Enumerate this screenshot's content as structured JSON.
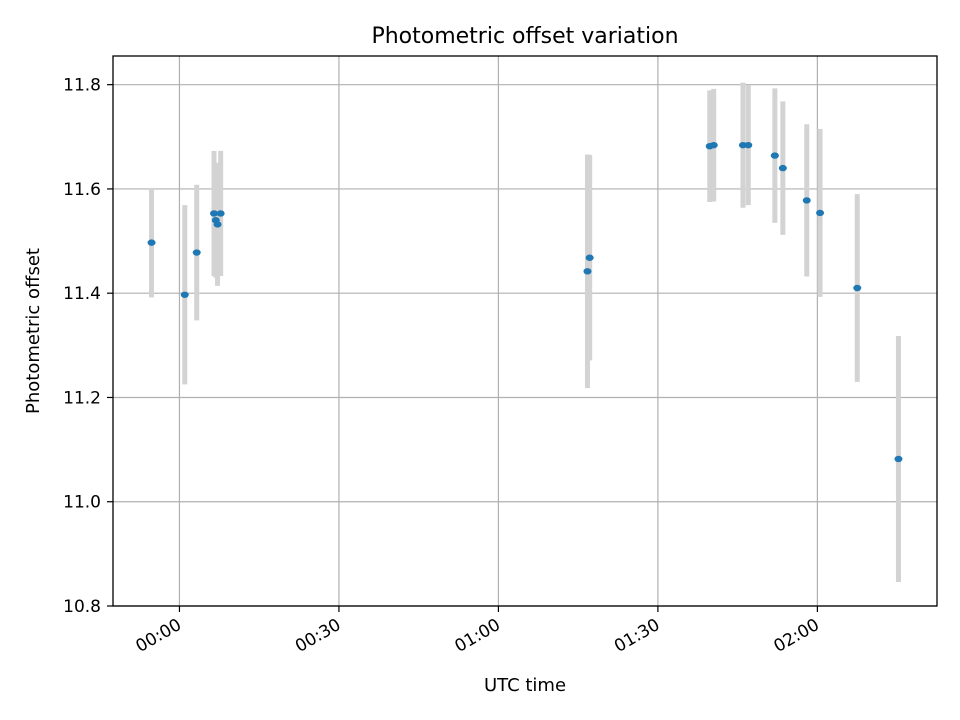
{
  "chart_data": {
    "type": "scatter",
    "title": "Photometric offset variation",
    "xlabel": "UTC time",
    "ylabel": "Photometric offset",
    "xlim": [
      "23:47:30",
      "02:22:30"
    ],
    "ylim": [
      10.8,
      11.855
    ],
    "xticks": [
      "00:00",
      "00:30",
      "01:00",
      "01:30",
      "02:00"
    ],
    "yticks": [
      "10.8",
      "11.0",
      "11.2",
      "11.4",
      "11.6",
      "11.8"
    ],
    "grid": true,
    "legend": "none",
    "colors": {
      "points": "#1f77b4",
      "errorbars": "#d3d3d3",
      "grid": "#b0b0b0"
    },
    "points": [
      {
        "x": "23:54:45",
        "y": 11.497,
        "err": 0.105
      },
      {
        "x": "00:01:00",
        "y": 11.397,
        "err": 0.172
      },
      {
        "x": "00:03:15",
        "y": 11.478,
        "err": 0.13
      },
      {
        "x": "00:06:30",
        "y": 11.553,
        "err": 0.12
      },
      {
        "x": "00:06:50",
        "y": 11.54,
        "err": 0.11
      },
      {
        "x": "00:07:10",
        "y": 11.532,
        "err": 0.118
      },
      {
        "x": "00:07:45",
        "y": 11.553,
        "err": 0.12
      },
      {
        "x": "01:16:45",
        "y": 11.442,
        "err": 0.224
      },
      {
        "x": "01:17:10",
        "y": 11.468,
        "err": 0.197
      },
      {
        "x": "01:39:45",
        "y": 11.682,
        "err": 0.107
      },
      {
        "x": "01:40:30",
        "y": 11.684,
        "err": 0.108
      },
      {
        "x": "01:46:00",
        "y": 11.684,
        "err": 0.12
      },
      {
        "x": "01:47:00",
        "y": 11.684,
        "err": 0.115
      },
      {
        "x": "01:52:00",
        "y": 11.664,
        "err": 0.129
      },
      {
        "x": "01:53:30",
        "y": 11.64,
        "err": 0.128
      },
      {
        "x": "01:58:00",
        "y": 11.578,
        "err": 0.146
      },
      {
        "x": "02:00:30",
        "y": 11.554,
        "err": 0.161
      },
      {
        "x": "02:07:30",
        "y": 11.41,
        "err": 0.18
      },
      {
        "x": "02:15:15",
        "y": 11.082,
        "err": 0.236
      }
    ]
  }
}
